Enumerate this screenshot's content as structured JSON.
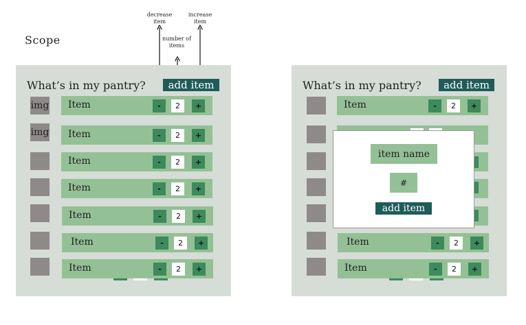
{
  "scope_label": "Scope",
  "annotations": {
    "decrease": "decrease item",
    "number": "number of items",
    "increase": "increase item"
  },
  "screen1": {
    "title": "What’s in my pantry?",
    "add_label": "add item",
    "rows": [
      {
        "thumb": "img",
        "label": "Item",
        "qty": "2",
        "minus": "-",
        "plus": "+"
      },
      {
        "thumb": "img",
        "label": "Item",
        "qty": "2",
        "minus": "-",
        "plus": "+"
      },
      {
        "thumb": "",
        "label": "Item",
        "qty": "2",
        "minus": "-",
        "plus": "+"
      },
      {
        "thumb": "",
        "label": "Item",
        "qty": "2",
        "minus": "-",
        "plus": "+"
      },
      {
        "thumb": "",
        "label": "Item",
        "qty": "2",
        "minus": "-",
        "plus": "+"
      },
      {
        "thumb": "",
        "label": "Item",
        "qty": "2",
        "minus": "-",
        "plus": "+"
      },
      {
        "thumb": "",
        "label": "Item",
        "qty": "2",
        "minus": "-",
        "plus": "+"
      }
    ]
  },
  "screen2": {
    "title": "What’s in my pantry?",
    "add_label": "add item",
    "rows": [
      {
        "label": "Item",
        "qty": "2",
        "minus": "-",
        "plus": "+"
      },
      {
        "label": "Item",
        "qty": "2",
        "minus": "-",
        "plus": "+"
      },
      {
        "label": "Item",
        "qty": "2",
        "minus": "-",
        "plus": "+"
      }
    ],
    "modal": {
      "name_label": "item name",
      "number_label": "#",
      "add_label": "add item"
    }
  },
  "colors": {
    "panel": "#d6dcd6",
    "row": "#94c096",
    "control": "#3d8a5c",
    "button": "#1e5c5a",
    "thumb": "#8f8a8a"
  }
}
